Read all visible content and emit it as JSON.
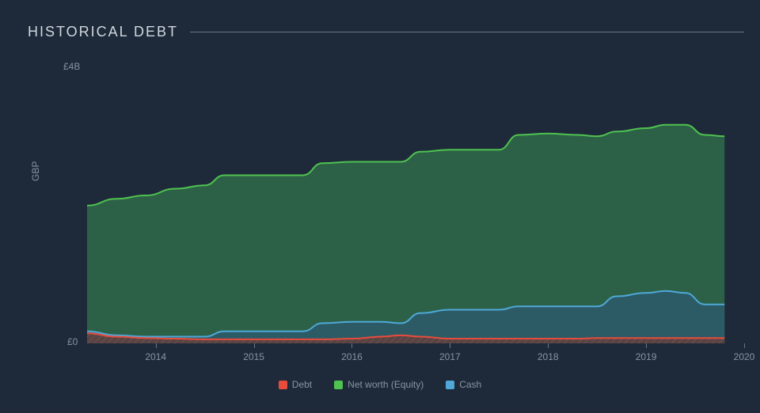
{
  "title": "HISTORICAL DEBT",
  "chart": {
    "type": "area",
    "background_color": "#1e2a3a",
    "plot_background_color": "#1a2433",
    "text_color": "#8a93a0",
    "title_color": "#d0d6dd",
    "title_fontsize": 18,
    "label_fontsize": 12,
    "title_letter_spacing": 2,
    "divider_color": "#6b7480",
    "x": {
      "min": 2013.3,
      "max": 2020,
      "ticks": [
        2014,
        2015,
        2016,
        2017,
        2018,
        2019,
        2020
      ],
      "tick_labels": [
        "2014",
        "2015",
        "2016",
        "2017",
        "2018",
        "2019",
        "2020"
      ]
    },
    "y": {
      "min": 0,
      "max": 4,
      "unit_label": "GBP",
      "top_label": "£4B",
      "bottom_label": "£0"
    },
    "series": [
      {
        "name": "Net worth (Equity)",
        "stroke": "#4fc24f",
        "fill": "#2f6b4a",
        "fill_opacity": 0.85,
        "stroke_width": 2,
        "points": [
          [
            2013.3,
            2.05
          ],
          [
            2013.6,
            2.15
          ],
          [
            2013.9,
            2.2
          ],
          [
            2014.2,
            2.3
          ],
          [
            2014.5,
            2.35
          ],
          [
            2014.7,
            2.5
          ],
          [
            2015.0,
            2.5
          ],
          [
            2015.2,
            2.5
          ],
          [
            2015.5,
            2.5
          ],
          [
            2015.7,
            2.68
          ],
          [
            2016.0,
            2.7
          ],
          [
            2016.3,
            2.7
          ],
          [
            2016.5,
            2.7
          ],
          [
            2016.7,
            2.85
          ],
          [
            2017.0,
            2.88
          ],
          [
            2017.3,
            2.88
          ],
          [
            2017.5,
            2.88
          ],
          [
            2017.7,
            3.1
          ],
          [
            2018.0,
            3.12
          ],
          [
            2018.3,
            3.1
          ],
          [
            2018.5,
            3.08
          ],
          [
            2018.7,
            3.15
          ],
          [
            2019.0,
            3.2
          ],
          [
            2019.2,
            3.25
          ],
          [
            2019.4,
            3.25
          ],
          [
            2019.6,
            3.1
          ],
          [
            2019.8,
            3.08
          ]
        ]
      },
      {
        "name": "Cash",
        "stroke": "#4fa8d8",
        "fill": "#2d5a6b",
        "fill_opacity": 0.85,
        "stroke_width": 2,
        "points": [
          [
            2013.3,
            0.18
          ],
          [
            2013.6,
            0.12
          ],
          [
            2013.9,
            0.1
          ],
          [
            2014.2,
            0.1
          ],
          [
            2014.5,
            0.1
          ],
          [
            2014.7,
            0.18
          ],
          [
            2015.0,
            0.18
          ],
          [
            2015.2,
            0.18
          ],
          [
            2015.5,
            0.18
          ],
          [
            2015.7,
            0.3
          ],
          [
            2016.0,
            0.32
          ],
          [
            2016.3,
            0.32
          ],
          [
            2016.5,
            0.3
          ],
          [
            2016.7,
            0.45
          ],
          [
            2017.0,
            0.5
          ],
          [
            2017.3,
            0.5
          ],
          [
            2017.5,
            0.5
          ],
          [
            2017.7,
            0.55
          ],
          [
            2018.0,
            0.55
          ],
          [
            2018.3,
            0.55
          ],
          [
            2018.5,
            0.55
          ],
          [
            2018.7,
            0.7
          ],
          [
            2019.0,
            0.75
          ],
          [
            2019.2,
            0.78
          ],
          [
            2019.4,
            0.75
          ],
          [
            2019.6,
            0.58
          ],
          [
            2019.8,
            0.58
          ]
        ]
      },
      {
        "name": "Debt",
        "stroke": "#e84c3d",
        "fill": "#6b3a36",
        "fill_opacity": 0.7,
        "stroke_width": 2,
        "hatch": true,
        "hatch_color": "#8a5a4a",
        "points": [
          [
            2013.3,
            0.15
          ],
          [
            2013.6,
            0.1
          ],
          [
            2013.9,
            0.08
          ],
          [
            2014.2,
            0.07
          ],
          [
            2014.5,
            0.06
          ],
          [
            2014.7,
            0.06
          ],
          [
            2015.0,
            0.06
          ],
          [
            2015.2,
            0.06
          ],
          [
            2015.5,
            0.06
          ],
          [
            2015.7,
            0.06
          ],
          [
            2016.0,
            0.07
          ],
          [
            2016.3,
            0.1
          ],
          [
            2016.5,
            0.12
          ],
          [
            2016.7,
            0.1
          ],
          [
            2017.0,
            0.07
          ],
          [
            2017.3,
            0.07
          ],
          [
            2017.5,
            0.07
          ],
          [
            2017.7,
            0.07
          ],
          [
            2018.0,
            0.07
          ],
          [
            2018.3,
            0.07
          ],
          [
            2018.5,
            0.08
          ],
          [
            2018.7,
            0.08
          ],
          [
            2019.0,
            0.08
          ],
          [
            2019.2,
            0.08
          ],
          [
            2019.4,
            0.08
          ],
          [
            2019.6,
            0.08
          ],
          [
            2019.8,
            0.08
          ]
        ]
      }
    ],
    "legend": {
      "position": "bottom",
      "items": [
        {
          "label": "Debt",
          "color": "#e84c3d"
        },
        {
          "label": "Net worth (Equity)",
          "color": "#4fc24f"
        },
        {
          "label": "Cash",
          "color": "#4fa8d8"
        }
      ]
    }
  }
}
